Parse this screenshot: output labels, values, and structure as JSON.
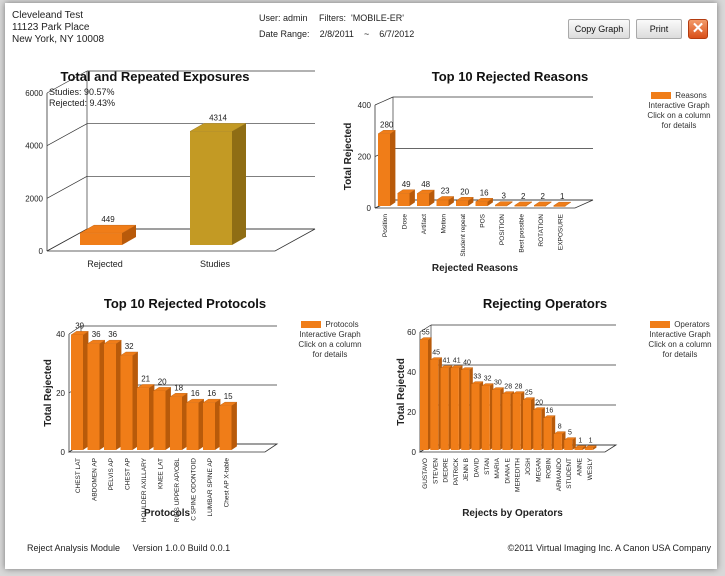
{
  "header": {
    "org_name": "Cleveleand Test",
    "address1": "11123 Park Place",
    "address2": "New York, NY 10008",
    "user_label": "User:",
    "user_value": "admin",
    "filters_label": "Filters:",
    "filters_value": "'MOBILE-ER'",
    "date_label": "Date Range:",
    "date_from": "2/8/2011",
    "date_sep": "~",
    "date_to": "6/7/2012",
    "copy_label": "Copy Graph",
    "print_label": "Print",
    "close_icon": "close-x-icon"
  },
  "colors": {
    "orange": "#f07d18",
    "orange_dark": "#b85a0a",
    "gold": "#c39a24",
    "gold_dark": "#8f6d14"
  },
  "footer": {
    "module": "Reject Analysis Module",
    "version": "Version 1.0.0  Build 0.0.1",
    "copyright": "©2011 Virtual Imaging Inc. A  Canon USA Company"
  },
  "chart_data": [
    {
      "type": "bar",
      "title": "Total and Repeated Exposures",
      "annotations": [
        "Studies: 90.57%",
        "Rejected: 9.43%"
      ],
      "categories": [
        "Rejected",
        "Studies"
      ],
      "values": [
        449,
        4314
      ],
      "data_labels": [
        "449",
        "4314"
      ],
      "ylim": [
        0,
        6000
      ],
      "yticks": [
        0,
        2000,
        4000,
        6000
      ],
      "ytick_labels": [
        "0",
        "2000",
        "4000",
        "6000"
      ],
      "three_d": true,
      "grid": true
    },
    {
      "type": "bar",
      "title": "Top 10 Rejected Reasons",
      "xlabel": "Rejected Reasons",
      "ylabel": "Total Rejected",
      "categories": [
        "Position",
        "Dose",
        "Artifact",
        "Motion",
        "Student repeat",
        "POS",
        "POSITION",
        "Best possible",
        "ROTATION",
        "EXPOSURE"
      ],
      "values": [
        280,
        49,
        48,
        23,
        20,
        16,
        3,
        2,
        2,
        1
      ],
      "ylim": [
        0,
        400
      ],
      "yticks": [
        0,
        200,
        400
      ],
      "ytick_labels": [
        "0",
        "200",
        "400"
      ],
      "legend": {
        "name": "Reasons",
        "note": "Interactive Graph Click on a column for details",
        "position": "right"
      },
      "three_d": true,
      "grid": true
    },
    {
      "type": "bar",
      "title": "Top 10 Rejected Protocols",
      "xlabel": "Protocols",
      "ylabel": "Total Rejected",
      "categories": [
        "CHEST LAT",
        "ABDOMEN AP",
        "PELVIS AP",
        "CHEST AP",
        "SHOULDER AXILLARY",
        "KNEE LAT",
        "RIBS UPPER AP/OBL",
        "C SPINE ODONTOID",
        "LUMBAR SPINE AP",
        "Chest AP X-table"
      ],
      "values": [
        39,
        36,
        36,
        32,
        21,
        20,
        18,
        16,
        16,
        15
      ],
      "ylim": [
        0,
        40
      ],
      "yticks": [
        0,
        20,
        40
      ],
      "ytick_labels": [
        "0",
        "20",
        "40"
      ],
      "legend": {
        "name": "Protocols",
        "note": "Interactive Graph Click on a column for details",
        "position": "right"
      },
      "three_d": true,
      "grid": true
    },
    {
      "type": "bar",
      "title": "Rejecting Operators",
      "xlabel": "Rejects by Operators",
      "ylabel": "Total Rejected",
      "categories": [
        "GUSTAVO",
        "STEVEN",
        "DIEDRE",
        "PATRICK",
        "JENN B",
        "DAVID",
        "STAN",
        "MARIA",
        "DIANA E",
        "MEREDITH",
        "JOSH",
        "MEGAN",
        "ROBIN",
        "ARMANDO",
        "STUDENT",
        "ANNE",
        "WESLY"
      ],
      "values": [
        55,
        45,
        41,
        41,
        40,
        33,
        32,
        30,
        28,
        28,
        25,
        20,
        16,
        8,
        5,
        1,
        1
      ],
      "ylim": [
        0,
        60
      ],
      "yticks": [
        0,
        20,
        40,
        60
      ],
      "ytick_labels": [
        "0",
        "20",
        "40",
        "60"
      ],
      "legend": {
        "name": "Operators",
        "note": "Interactive Graph Click on a column for details",
        "position": "right"
      },
      "three_d": true,
      "grid": true
    }
  ]
}
